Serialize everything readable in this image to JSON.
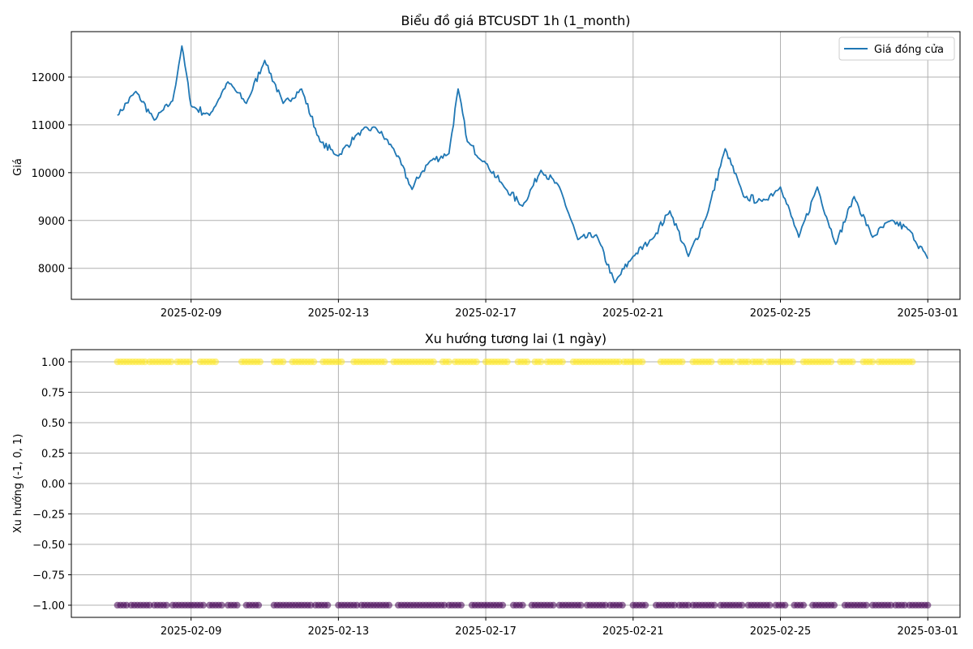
{
  "colors": {
    "line": "#1f77b4",
    "up": "#fde725",
    "down": "#440154",
    "grid": "#b0b0b0",
    "axis": "#000000"
  },
  "chart_data": [
    {
      "type": "line",
      "title": "Biểu đồ giá BTCUSDT 1h (1_month)",
      "xlabel": "",
      "ylabel": "Giá",
      "xlim": [
        "2025-02-05T18:00",
        "2025-03-01T21:00"
      ],
      "ylim": [
        7350,
        12950
      ],
      "grid": true,
      "legend": "top-right",
      "x_ticks": [
        "2025-02-09",
        "2025-02-13",
        "2025-02-17",
        "2025-02-21",
        "2025-02-25",
        "2025-03-01"
      ],
      "y_ticks": [
        8000,
        9000,
        10000,
        11000,
        12000
      ],
      "series": [
        {
          "name": "Giá đóng cửa",
          "x": [
            "2025-02-07T00:00",
            "2025-02-07T12:00",
            "2025-02-08T00:00",
            "2025-02-08T12:00",
            "2025-02-08T18:00",
            "2025-02-09T00:00",
            "2025-02-09T12:00",
            "2025-02-10T00:00",
            "2025-02-10T12:00",
            "2025-02-11T00:00",
            "2025-02-11T12:00",
            "2025-02-12T00:00",
            "2025-02-12T12:00",
            "2025-02-13T00:00",
            "2025-02-13T12:00",
            "2025-02-14T00:00",
            "2025-02-14T12:00",
            "2025-02-15T00:00",
            "2025-02-15T06:00",
            "2025-02-15T12:00",
            "2025-02-16T00:00",
            "2025-02-16T06:00",
            "2025-02-16T12:00",
            "2025-02-17T00:00",
            "2025-02-17T12:00",
            "2025-02-18T00:00",
            "2025-02-18T12:00",
            "2025-02-19T00:00",
            "2025-02-19T12:00",
            "2025-02-20T00:00",
            "2025-02-20T12:00",
            "2025-02-21T00:00",
            "2025-02-21T12:00",
            "2025-02-22T00:00",
            "2025-02-22T12:00",
            "2025-02-23T00:00",
            "2025-02-23T12:00",
            "2025-02-24T00:00",
            "2025-02-24T12:00",
            "2025-02-25T00:00",
            "2025-02-25T12:00",
            "2025-02-26T00:00",
            "2025-02-26T12:00",
            "2025-02-27T00:00",
            "2025-02-27T12:00",
            "2025-02-28T00:00",
            "2025-02-28T12:00",
            "2025-03-01T00:00"
          ],
          "values": [
            11200,
            11700,
            11100,
            11500,
            12650,
            11400,
            11200,
            11900,
            11450,
            12350,
            11450,
            11750,
            10650,
            10350,
            10800,
            10950,
            10500,
            9650,
            10000,
            10250,
            10400,
            11750,
            10650,
            10200,
            9700,
            9300,
            10050,
            9700,
            8600,
            8700,
            7700,
            8250,
            8600,
            9200,
            8250,
            9100,
            10500,
            9500,
            9400,
            9700,
            8650,
            9700,
            8500,
            9500,
            8650,
            9000,
            8800,
            8200
          ]
        }
      ]
    },
    {
      "type": "scatter",
      "title": "Xu hướng tương lai (1 ngày)",
      "xlabel": "",
      "ylabel": "Xu hướng (-1, 0, 1)",
      "xlim": [
        "2025-02-05T18:00",
        "2025-03-01T21:00"
      ],
      "ylim": [
        -1.1,
        1.1
      ],
      "grid": true,
      "x_ticks": [
        "2025-02-09",
        "2025-02-13",
        "2025-02-17",
        "2025-02-21",
        "2025-02-25",
        "2025-03-01"
      ],
      "y_ticks": [
        -1.0,
        -0.75,
        -0.5,
        -0.25,
        0.0,
        0.25,
        0.5,
        0.75,
        1.0
      ],
      "y_tick_labels": [
        "−1.00",
        "−0.75",
        "−0.50",
        "−0.25",
        "0.00",
        "0.25",
        "0.50",
        "0.75",
        "1.00"
      ],
      "series": [
        {
          "value": 1,
          "segments": [
            [
              "2025-02-07T00:00",
              "2025-02-07T18:00"
            ],
            [
              "2025-02-07T21:00",
              "2025-02-08T12:00"
            ],
            [
              "2025-02-08T15:00",
              "2025-02-09T00:00"
            ],
            [
              "2025-02-09T06:00",
              "2025-02-09T16:00"
            ],
            [
              "2025-02-10T09:00",
              "2025-02-10T21:00"
            ],
            [
              "2025-02-11T06:00",
              "2025-02-11T12:00"
            ],
            [
              "2025-02-11T18:00",
              "2025-02-12T09:00"
            ],
            [
              "2025-02-12T14:00",
              "2025-02-13T03:00"
            ],
            [
              "2025-02-13T10:00",
              "2025-02-14T06:00"
            ],
            [
              "2025-02-14T12:00",
              "2025-02-15T14:00"
            ],
            [
              "2025-02-15T20:00",
              "2025-02-16T00:00"
            ],
            [
              "2025-02-16T04:00",
              "2025-02-16T18:00"
            ],
            [
              "2025-02-17T00:00",
              "2025-02-17T15:00"
            ],
            [
              "2025-02-17T21:00",
              "2025-02-18T04:00"
            ],
            [
              "2025-02-18T08:00",
              "2025-02-18T12:00"
            ],
            [
              "2025-02-18T16:00",
              "2025-02-19T03:00"
            ],
            [
              "2025-02-19T09:00",
              "2025-02-20T15:00"
            ],
            [
              "2025-02-20T18:00",
              "2025-02-21T06:00"
            ],
            [
              "2025-02-21T18:00",
              "2025-02-22T09:00"
            ],
            [
              "2025-02-22T15:00",
              "2025-02-23T03:00"
            ],
            [
              "2025-02-23T09:00",
              "2025-02-23T18:00"
            ],
            [
              "2025-02-23T21:00",
              "2025-02-24T03:00"
            ],
            [
              "2025-02-24T06:00",
              "2025-02-24T12:00"
            ],
            [
              "2025-02-24T16:00",
              "2025-02-25T09:00"
            ],
            [
              "2025-02-25T15:00",
              "2025-02-26T09:00"
            ],
            [
              "2025-02-26T15:00",
              "2025-02-27T00:00"
            ],
            [
              "2025-02-27T06:00",
              "2025-02-27T12:00"
            ],
            [
              "2025-02-27T16:00",
              "2025-02-28T14:00"
            ]
          ]
        },
        {
          "value": -1,
          "segments": [
            [
              "2025-02-07T00:00",
              "2025-02-07T06:00"
            ],
            [
              "2025-02-07T09:00",
              "2025-02-07T21:00"
            ],
            [
              "2025-02-08T00:00",
              "2025-02-08T09:00"
            ],
            [
              "2025-02-08T12:00",
              "2025-02-09T09:00"
            ],
            [
              "2025-02-09T12:00",
              "2025-02-09T21:00"
            ],
            [
              "2025-02-10T00:00",
              "2025-02-10T06:00"
            ],
            [
              "2025-02-10T12:00",
              "2025-02-10T21:00"
            ],
            [
              "2025-02-11T06:00",
              "2025-02-12T06:00"
            ],
            [
              "2025-02-12T09:00",
              "2025-02-12T18:00"
            ],
            [
              "2025-02-13T00:00",
              "2025-02-13T12:00"
            ],
            [
              "2025-02-13T15:00",
              "2025-02-14T09:00"
            ],
            [
              "2025-02-14T15:00",
              "2025-02-15T21:00"
            ],
            [
              "2025-02-16T00:00",
              "2025-02-16T09:00"
            ],
            [
              "2025-02-16T15:00",
              "2025-02-17T12:00"
            ],
            [
              "2025-02-17T18:00",
              "2025-02-18T00:00"
            ],
            [
              "2025-02-18T06:00",
              "2025-02-18T21:00"
            ],
            [
              "2025-02-19T00:00",
              "2025-02-19T15:00"
            ],
            [
              "2025-02-19T18:00",
              "2025-02-20T06:00"
            ],
            [
              "2025-02-20T09:00",
              "2025-02-20T18:00"
            ],
            [
              "2025-02-21T00:00",
              "2025-02-21T09:00"
            ],
            [
              "2025-02-21T15:00",
              "2025-02-22T03:00"
            ],
            [
              "2025-02-22T06:00",
              "2025-02-22T12:00"
            ],
            [
              "2025-02-22T15:00",
              "2025-02-23T06:00"
            ],
            [
              "2025-02-23T09:00",
              "2025-02-24T00:00"
            ],
            [
              "2025-02-24T03:00",
              "2025-02-24T18:00"
            ],
            [
              "2025-02-24T21:00",
              "2025-02-25T03:00"
            ],
            [
              "2025-02-25T09:00",
              "2025-02-25T15:00"
            ],
            [
              "2025-02-25T21:00",
              "2025-02-26T12:00"
            ],
            [
              "2025-02-26T18:00",
              "2025-02-27T09:00"
            ],
            [
              "2025-02-27T12:00",
              "2025-02-28T00:00"
            ],
            [
              "2025-02-28T03:00",
              "2025-02-28T09:00"
            ],
            [
              "2025-02-28T12:00",
              "2025-03-01T00:00"
            ]
          ]
        }
      ]
    }
  ]
}
